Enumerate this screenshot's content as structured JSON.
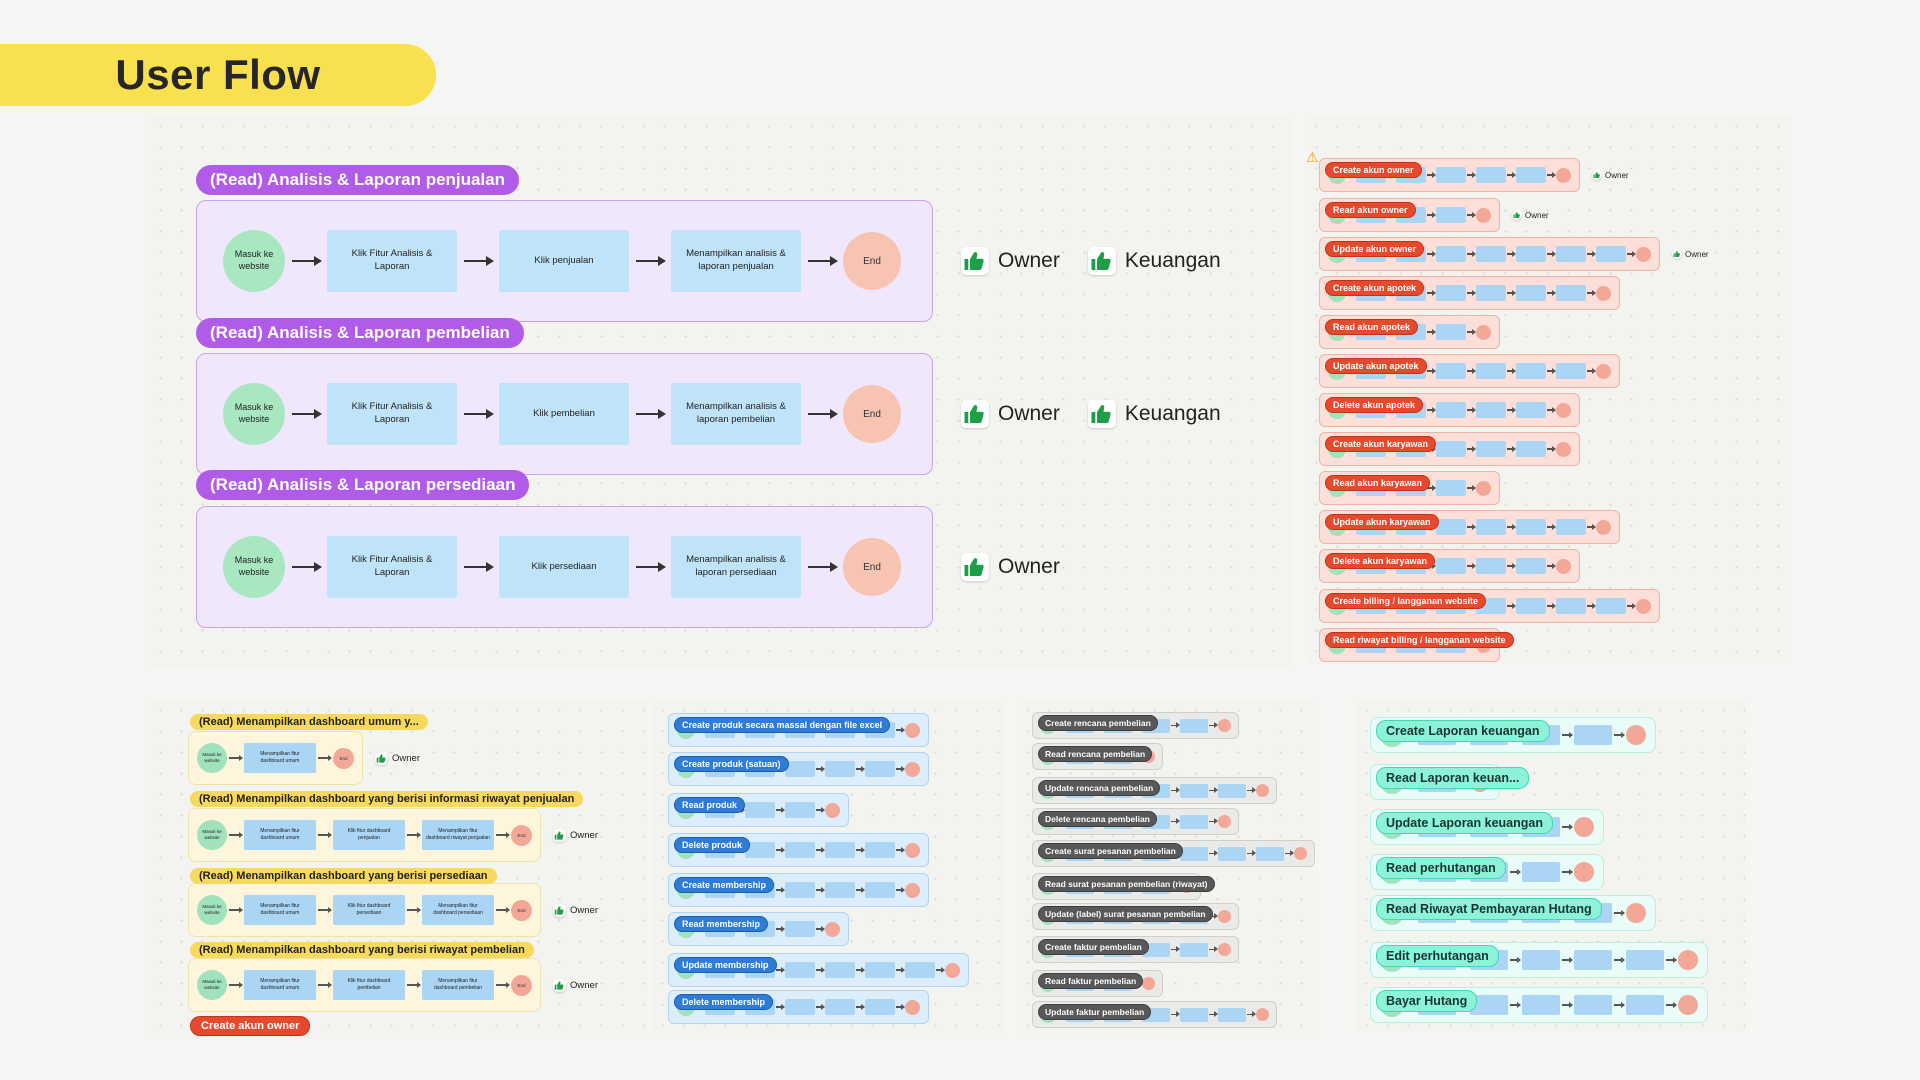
{
  "title": "User Flow",
  "stamps": {
    "owner": "Owner",
    "keuangan": "Keuangan"
  },
  "icons": {
    "approval": "thumbs-up-icon",
    "warning": "warning-triangle-icon"
  },
  "colors": {
    "title_bg": "#f8e04e",
    "purple": "#b15ce8",
    "red": "#e64a2e",
    "blue": "#2e7cd6",
    "gray": "#585858",
    "teal": "#8cf3da",
    "yellow": "#f7d95e",
    "owner_green": "#1d9e47",
    "node_blue": "#bfe4f9",
    "start_green": "#a9e7c0",
    "end_pink": "#f8c4b2"
  },
  "purple_sections": [
    {
      "label": "(Read) Analisis & Laporan penjualan",
      "start": "Masuk ke website",
      "steps": [
        "Klik Fitur Analisis & Laporan",
        "Klik penjualan",
        "Menampilkan analisis & laporan penjualan"
      ],
      "end": "End",
      "approvals": [
        "Owner",
        "Keuangan"
      ]
    },
    {
      "label": "(Read) Analisis & Laporan pembelian",
      "start": "Masuk ke website",
      "steps": [
        "Klik Fitur Analisis & Laporan",
        "Klik pembelian",
        "Menampilkan analisis & laporan pembelian"
      ],
      "end": "End",
      "approvals": [
        "Owner",
        "Keuangan"
      ]
    },
    {
      "label": "(Read) Analisis & Laporan persediaan",
      "start": "Masuk ke website",
      "steps": [
        "Klik Fitur Analisis & Laporan",
        "Klik persediaan",
        "Menampilkan analisis & laporan persediaan"
      ],
      "end": "End",
      "approvals": [
        "Owner"
      ]
    }
  ],
  "account_flows": [
    {
      "label": "Create akun owner",
      "steps": 5,
      "approvals": [
        "Owner"
      ],
      "warning": true
    },
    {
      "label": "Read akun owner",
      "steps": 3,
      "approvals": [
        "Owner"
      ]
    },
    {
      "label": "Update akun owner",
      "steps": 7,
      "approvals": [
        "Owner"
      ]
    },
    {
      "label": "Create akun apotek",
      "steps": 6
    },
    {
      "label": "Read akun apotek",
      "steps": 3
    },
    {
      "label": "Update akun apotek",
      "steps": 6
    },
    {
      "label": "Delete akun apotek",
      "steps": 5
    },
    {
      "label": "Create akun karyawan",
      "steps": 5
    },
    {
      "label": "Read akun karyawan",
      "steps": 3
    },
    {
      "label": "Update akun karyawan",
      "steps": 6
    },
    {
      "label": "Delete akun karyawan",
      "steps": 5
    },
    {
      "label": "Create billing / langganan website",
      "steps": 7
    },
    {
      "label": "Read riwayat billing / langganan website",
      "steps": 3
    }
  ],
  "dashboard_flows": [
    {
      "label": "(Read) Menampilkan dashboard umum y...",
      "start": "Masuk ke website",
      "steps": [
        "Menampilkan fitur dashboard umum"
      ],
      "end": "End",
      "approvals": [
        "Owner"
      ]
    },
    {
      "label": "(Read) Menampilkan dashboard yang berisi informasi riwayat penjualan",
      "start": "Masuk ke website",
      "steps": [
        "Menampilkan fitur dashboard umum",
        "Klik fitur dashboard penjualan",
        "Menampilkan fitur dashboard riwayat penjualan"
      ],
      "end": "End",
      "approvals": [
        "Owner"
      ]
    },
    {
      "label": "(Read) Menampilkan dashboard yang berisi persediaan",
      "start": "Masuk ke website",
      "steps": [
        "Menampilkan fitur dashboard umum",
        "Klik fitur dashboard persediaan",
        "Menampilkan fitur dashboard persediaan"
      ],
      "end": "End",
      "approvals": [
        "Owner"
      ]
    },
    {
      "label": "(Read) Menampilkan dashboard yang berisi riwayat pembelian",
      "start": "Masuk ke website",
      "steps": [
        "Menampilkan fitur dashboard umum",
        "Klik fitur dashboard pembelian",
        "Menampilkan fitur dashboard pembelian"
      ],
      "end": "End",
      "approvals": [
        "Owner"
      ]
    }
  ],
  "dashboard_footer_label": "Create akun owner",
  "product_flows": [
    {
      "label": "Create produk secara massal dengan file excel",
      "steps": 5
    },
    {
      "label": "Create produk (satuan)",
      "steps": 5
    },
    {
      "label": "Read produk",
      "steps": 3
    },
    {
      "label": "Delete produk",
      "steps": 5
    },
    {
      "label": "Create membership",
      "steps": 5
    },
    {
      "label": "Read membership",
      "steps": 3
    },
    {
      "label": "Update membership",
      "steps": 6
    },
    {
      "label": "Delete membership",
      "steps": 5
    }
  ],
  "purchase_flows": [
    {
      "label": "Create rencana pembelian",
      "steps": 4
    },
    {
      "label": "Read rencana pembelian",
      "steps": 2
    },
    {
      "label": "Update rencana pembelian",
      "steps": 5
    },
    {
      "label": "Delete rencana pembelian",
      "steps": 4
    },
    {
      "label": "Create surat pesanan pembelian",
      "steps": 6
    },
    {
      "label": "Read surat pesanan pembelian (riwayat)",
      "steps": 3
    },
    {
      "label": "Update (label) surat pesanan pembelian",
      "steps": 4
    },
    {
      "label": "Create faktur pembelian",
      "steps": 4
    },
    {
      "label": "Read faktur pembelian",
      "steps": 2
    },
    {
      "label": "Update faktur pembelian",
      "steps": 5
    }
  ],
  "finance_flows": [
    {
      "label": "Create Laporan keuangan",
      "steps": 4
    },
    {
      "label": "Read Laporan keuan...",
      "steps": 1
    },
    {
      "label": "Update Laporan keuangan",
      "steps": 3
    },
    {
      "label": "Read perhutangan",
      "steps": 3
    },
    {
      "label": "Read Riwayat Pembayaran Hutang",
      "steps": 4
    },
    {
      "label": "Edit perhutangan",
      "steps": 5
    },
    {
      "label": "Bayar Hutang",
      "steps": 5
    }
  ]
}
